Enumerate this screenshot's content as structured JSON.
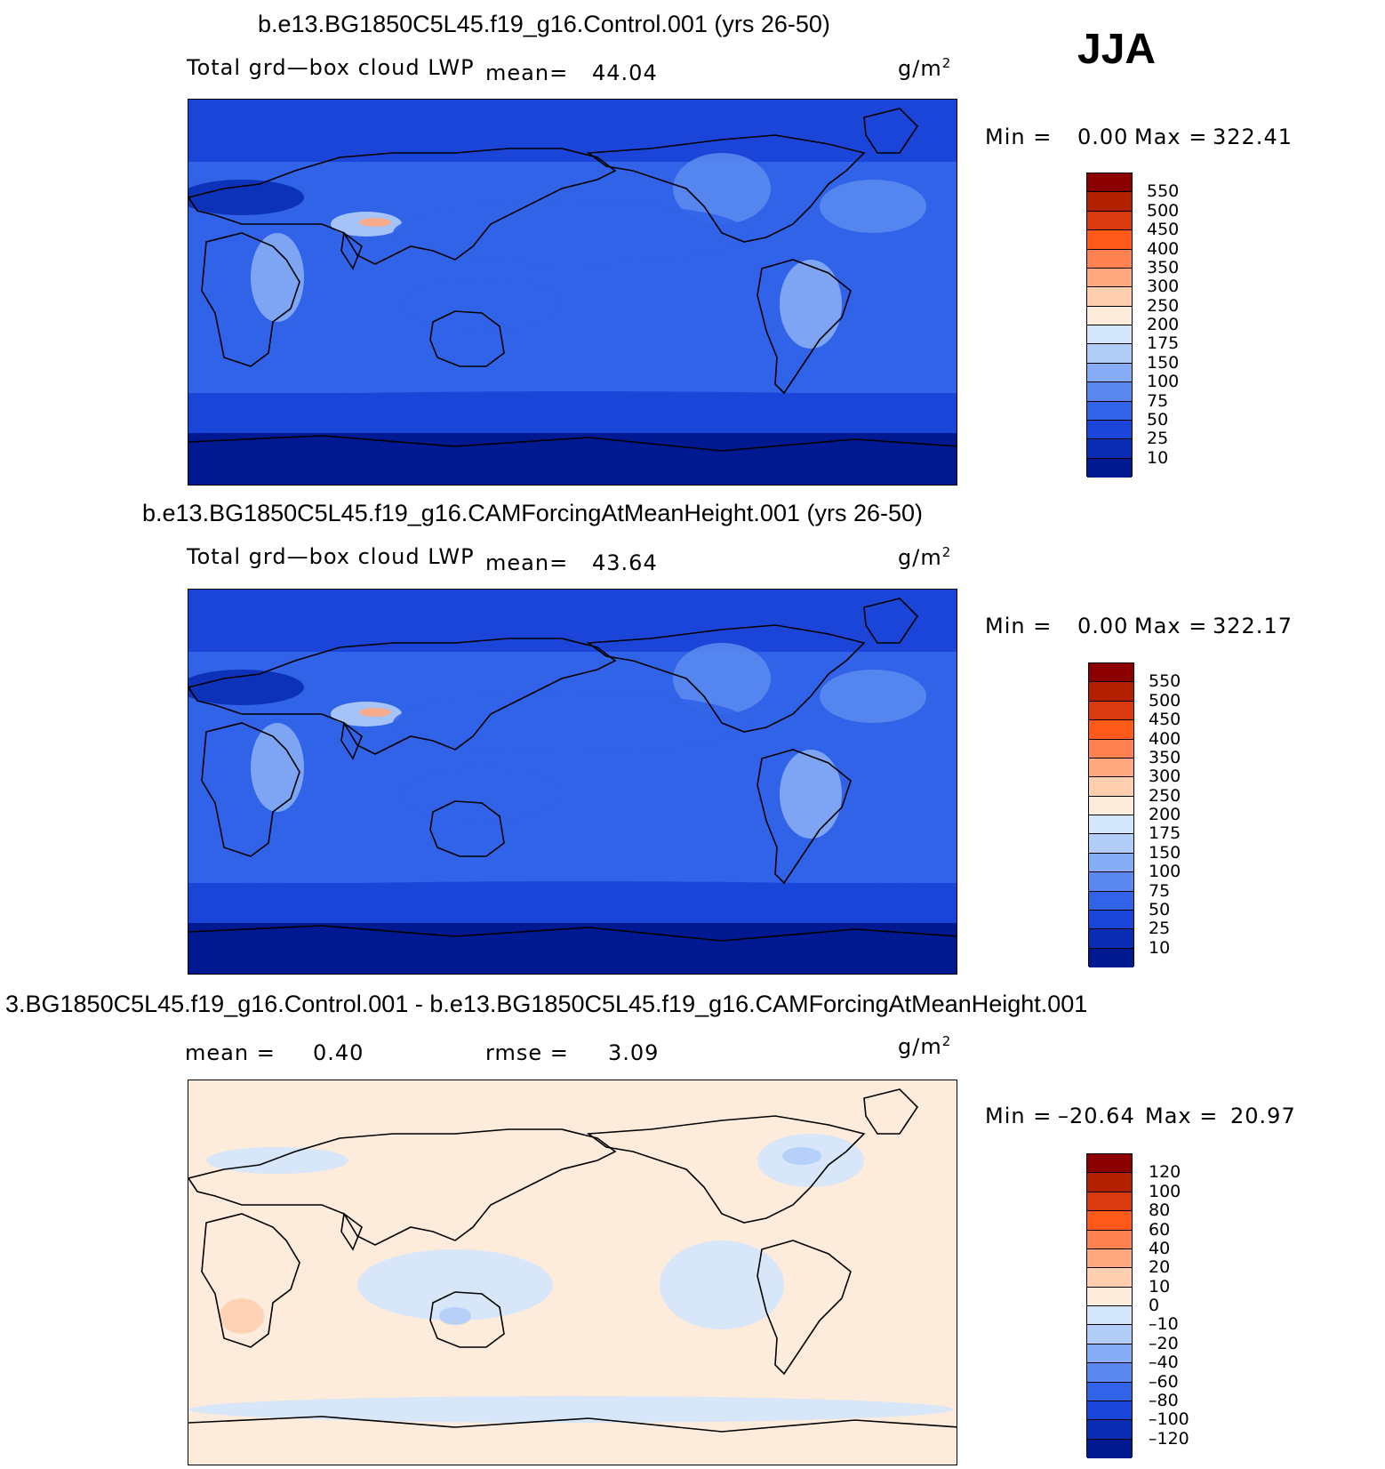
{
  "season": "JJA",
  "panels": [
    {
      "title": "b.e13.BG1850C5L45.f19_g16.Control.001 (yrs 26-50)",
      "variable": "Total grd—box cloud LWP",
      "mean_label": "mean=",
      "mean_value": "44.04",
      "units": "g/m",
      "units_sup": "2",
      "min_label": "Min  =",
      "min_value": "0.00",
      "max_label": "Max  =",
      "max_value": "322.41",
      "colorbar_labels": [
        "550",
        "500",
        "450",
        "400",
        "350",
        "300",
        "250",
        "200",
        "175",
        "150",
        "100",
        "75",
        "50",
        "25",
        "10"
      ],
      "colors": [
        "#8b0000",
        "#b32000",
        "#d93a10",
        "#ff5a1a",
        "#ff8050",
        "#ffa880",
        "#ffcfb0",
        "#fdebdc",
        "#d3e6fb",
        "#b2cdf8",
        "#86acf5",
        "#5a88f0",
        "#3163e8",
        "#1a45d8",
        "#0a2cb5",
        "#001890"
      ]
    },
    {
      "title": "b.e13.BG1850C5L45.f19_g16.CAMForcingAtMeanHeight.001 (yrs 26-50)",
      "variable": "Total grd—box cloud LWP",
      "mean_label": "mean=",
      "mean_value": "43.64",
      "units": "g/m",
      "units_sup": "2",
      "min_label": "Min  =",
      "min_value": "0.00",
      "max_label": "Max  =",
      "max_value": "322.17",
      "colorbar_labels": [
        "550",
        "500",
        "450",
        "400",
        "350",
        "300",
        "250",
        "200",
        "175",
        "150",
        "100",
        "75",
        "50",
        "25",
        "10"
      ],
      "colors": [
        "#8b0000",
        "#b32000",
        "#d93a10",
        "#ff5a1a",
        "#ff8050",
        "#ffa880",
        "#ffcfb0",
        "#fdebdc",
        "#d3e6fb",
        "#b2cdf8",
        "#86acf5",
        "#5a88f0",
        "#3163e8",
        "#1a45d8",
        "#0a2cb5",
        "#001890"
      ]
    },
    {
      "title": "3.BG1850C5L45.f19_g16.Control.001 - b.e13.BG1850C5L45.f19_g16.CAMForcingAtMeanHeight.001",
      "mean_label": "mean  =",
      "mean_value": "0.40",
      "rmse_label": "rmse  =",
      "rmse_value": "3.09",
      "units": "g/m",
      "units_sup": "2",
      "min_label": "Min  =",
      "min_value": "–20.64",
      "max_label": "Max  =",
      "max_value": "20.97",
      "colorbar_labels": [
        "120",
        "100",
        "80",
        "60",
        "40",
        "20",
        "10",
        "0",
        "–10",
        "–20",
        "–40",
        "–60",
        "–80",
        "–100",
        "–120"
      ],
      "colors": [
        "#8b0000",
        "#b32000",
        "#d93a10",
        "#ff5a1a",
        "#ff8050",
        "#ffa880",
        "#ffcfb0",
        "#fdebdc",
        "#d3e6fb",
        "#b2cdf8",
        "#86acf5",
        "#5a88f0",
        "#3163e8",
        "#1a45d8",
        "#0a2cb5",
        "#001890"
      ]
    }
  ]
}
